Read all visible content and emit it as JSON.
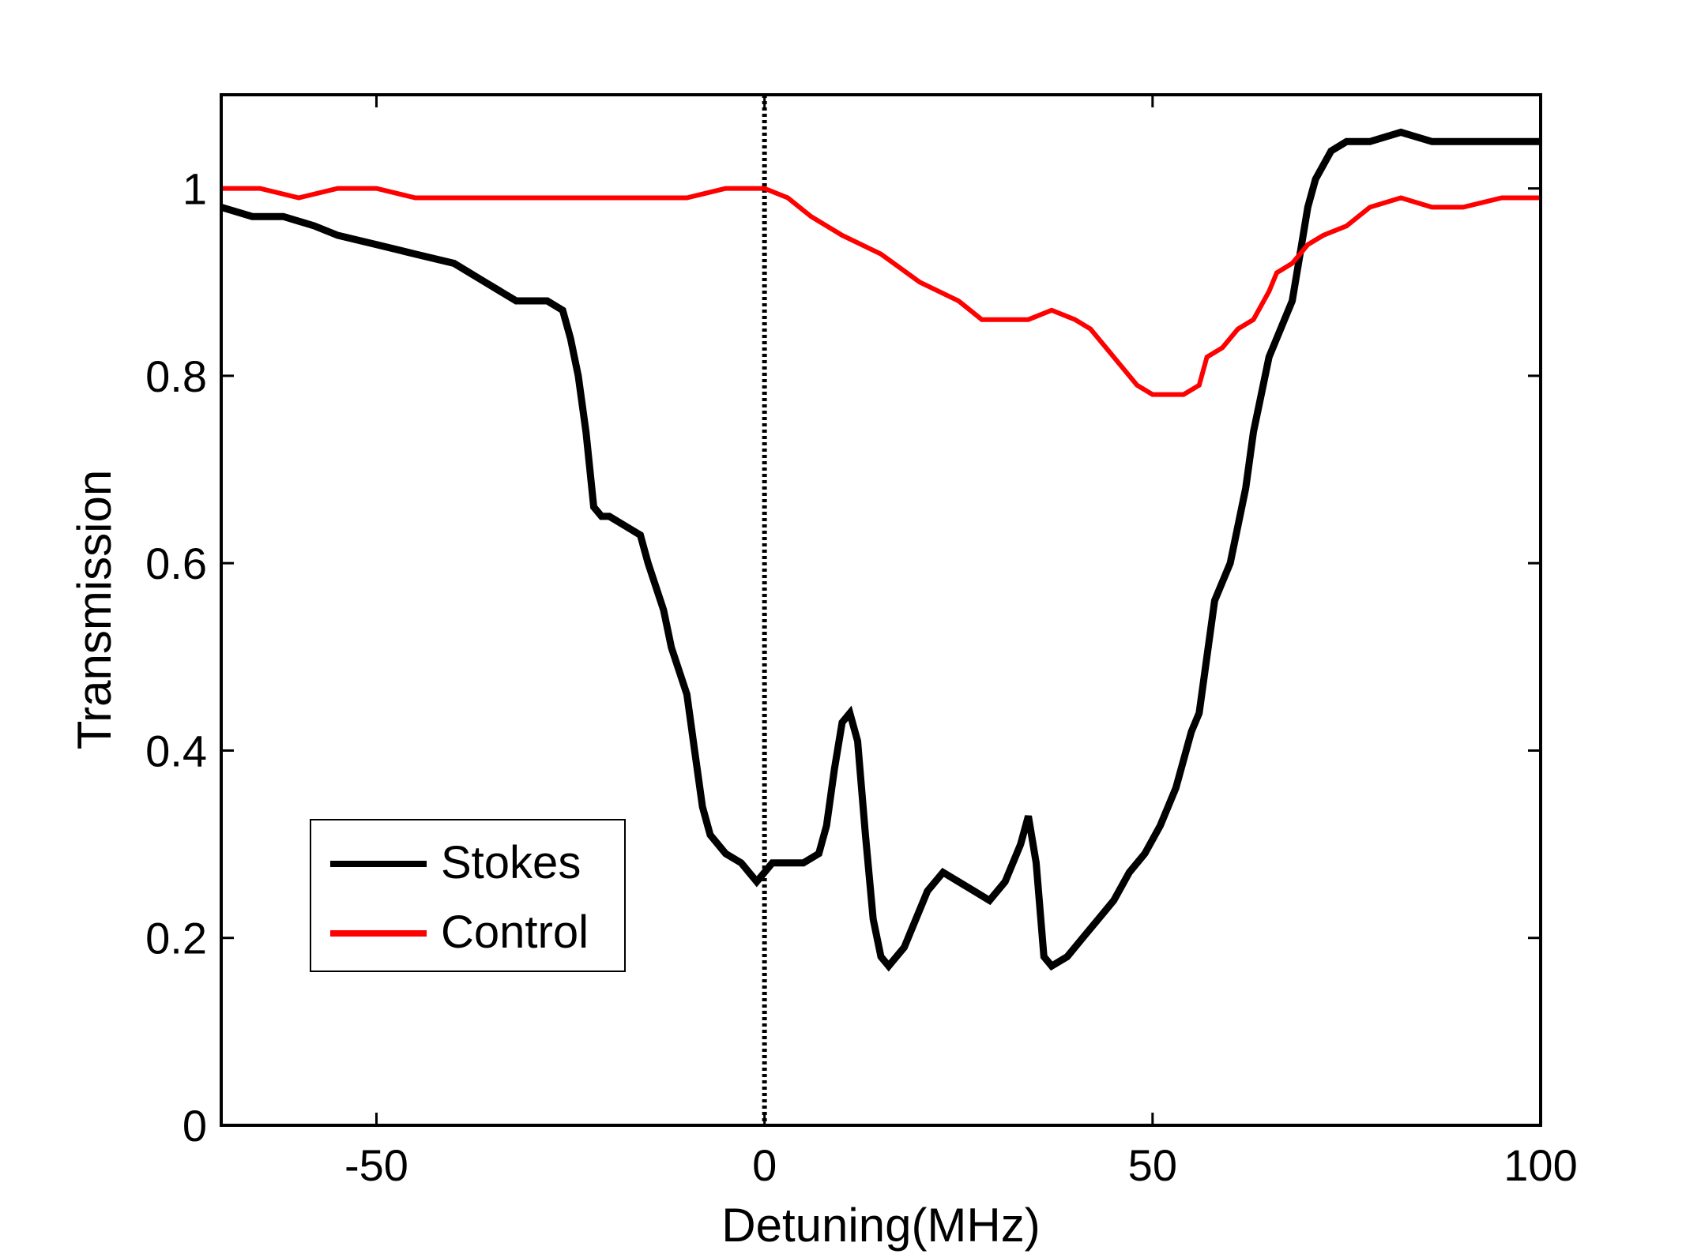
{
  "chart_data": {
    "type": "line",
    "title": "",
    "xlabel": "Detuning(MHz)",
    "ylabel": "Transmission",
    "xlim": [
      -70,
      100
    ],
    "ylim": [
      0,
      1.1
    ],
    "xticks": [
      -50,
      0,
      50,
      100
    ],
    "xtick_labels": [
      "-50",
      "0",
      "50",
      "100"
    ],
    "yticks": [
      0,
      0.2,
      0.4,
      0.6,
      0.8,
      1
    ],
    "ytick_labels": [
      "0",
      "0.2",
      "0.4",
      "0.6",
      "0.8",
      "1"
    ],
    "grid": false,
    "legend_position": "bottom-left",
    "reference_line": {
      "x": 0,
      "style": "dotted",
      "color": "#000000"
    },
    "series": [
      {
        "name": "Stokes",
        "color": "#000000",
        "points": [
          [
            -70,
            0.98
          ],
          [
            -66,
            0.97
          ],
          [
            -62,
            0.97
          ],
          [
            -58,
            0.96
          ],
          [
            -55,
            0.95
          ],
          [
            -50,
            0.94
          ],
          [
            -45,
            0.93
          ],
          [
            -40,
            0.92
          ],
          [
            -36,
            0.9
          ],
          [
            -32,
            0.88
          ],
          [
            -28,
            0.88
          ],
          [
            -26,
            0.87
          ],
          [
            -25,
            0.84
          ],
          [
            -24,
            0.8
          ],
          [
            -23,
            0.74
          ],
          [
            -22,
            0.66
          ],
          [
            -21,
            0.65
          ],
          [
            -20,
            0.65
          ],
          [
            -18,
            0.64
          ],
          [
            -16,
            0.63
          ],
          [
            -15,
            0.6
          ],
          [
            -13,
            0.55
          ],
          [
            -12,
            0.51
          ],
          [
            -10,
            0.46
          ],
          [
            -9,
            0.4
          ],
          [
            -8,
            0.34
          ],
          [
            -7,
            0.31
          ],
          [
            -5,
            0.29
          ],
          [
            -3,
            0.28
          ],
          [
            -2,
            0.27
          ],
          [
            -1,
            0.26
          ],
          [
            0,
            0.27
          ],
          [
            1,
            0.28
          ],
          [
            3,
            0.28
          ],
          [
            5,
            0.28
          ],
          [
            7,
            0.29
          ],
          [
            8,
            0.32
          ],
          [
            9,
            0.38
          ],
          [
            10,
            0.43
          ],
          [
            11,
            0.44
          ],
          [
            12,
            0.41
          ],
          [
            13,
            0.31
          ],
          [
            14,
            0.22
          ],
          [
            15,
            0.18
          ],
          [
            16,
            0.17
          ],
          [
            17,
            0.18
          ],
          [
            18,
            0.19
          ],
          [
            19,
            0.21
          ],
          [
            21,
            0.25
          ],
          [
            23,
            0.27
          ],
          [
            25,
            0.26
          ],
          [
            27,
            0.25
          ],
          [
            29,
            0.24
          ],
          [
            31,
            0.26
          ],
          [
            33,
            0.3
          ],
          [
            34,
            0.33
          ],
          [
            35,
            0.28
          ],
          [
            36,
            0.18
          ],
          [
            37,
            0.17
          ],
          [
            39,
            0.18
          ],
          [
            41,
            0.2
          ],
          [
            43,
            0.22
          ],
          [
            45,
            0.24
          ],
          [
            47,
            0.27
          ],
          [
            49,
            0.29
          ],
          [
            51,
            0.32
          ],
          [
            53,
            0.36
          ],
          [
            55,
            0.42
          ],
          [
            56,
            0.44
          ],
          [
            57,
            0.5
          ],
          [
            58,
            0.56
          ],
          [
            60,
            0.6
          ],
          [
            62,
            0.68
          ],
          [
            63,
            0.74
          ],
          [
            64,
            0.78
          ],
          [
            65,
            0.82
          ],
          [
            67,
            0.86
          ],
          [
            68,
            0.88
          ],
          [
            69,
            0.93
          ],
          [
            70,
            0.98
          ],
          [
            71,
            1.01
          ],
          [
            73,
            1.04
          ],
          [
            75,
            1.05
          ],
          [
            78,
            1.05
          ],
          [
            82,
            1.06
          ],
          [
            86,
            1.05
          ],
          [
            90,
            1.05
          ],
          [
            95,
            1.05
          ],
          [
            100,
            1.05
          ]
        ]
      },
      {
        "name": "Control",
        "color": "#ff0000",
        "points": [
          [
            -70,
            1.0
          ],
          [
            -65,
            1.0
          ],
          [
            -60,
            0.99
          ],
          [
            -55,
            1.0
          ],
          [
            -50,
            1.0
          ],
          [
            -45,
            0.99
          ],
          [
            -40,
            0.99
          ],
          [
            -35,
            0.99
          ],
          [
            -30,
            0.99
          ],
          [
            -25,
            0.99
          ],
          [
            -20,
            0.99
          ],
          [
            -15,
            0.99
          ],
          [
            -10,
            0.99
          ],
          [
            -5,
            1.0
          ],
          [
            0,
            1.0
          ],
          [
            3,
            0.99
          ],
          [
            6,
            0.97
          ],
          [
            10,
            0.95
          ],
          [
            15,
            0.93
          ],
          [
            20,
            0.9
          ],
          [
            25,
            0.88
          ],
          [
            28,
            0.86
          ],
          [
            31,
            0.86
          ],
          [
            34,
            0.86
          ],
          [
            37,
            0.87
          ],
          [
            40,
            0.86
          ],
          [
            42,
            0.85
          ],
          [
            44,
            0.83
          ],
          [
            46,
            0.81
          ],
          [
            48,
            0.79
          ],
          [
            50,
            0.78
          ],
          [
            52,
            0.78
          ],
          [
            54,
            0.78
          ],
          [
            56,
            0.79
          ],
          [
            57,
            0.82
          ],
          [
            59,
            0.83
          ],
          [
            61,
            0.85
          ],
          [
            63,
            0.86
          ],
          [
            65,
            0.89
          ],
          [
            66,
            0.91
          ],
          [
            68,
            0.92
          ],
          [
            70,
            0.94
          ],
          [
            72,
            0.95
          ],
          [
            75,
            0.96
          ],
          [
            78,
            0.98
          ],
          [
            82,
            0.99
          ],
          [
            86,
            0.98
          ],
          [
            90,
            0.98
          ],
          [
            95,
            0.99
          ],
          [
            100,
            0.99
          ]
        ]
      }
    ]
  }
}
